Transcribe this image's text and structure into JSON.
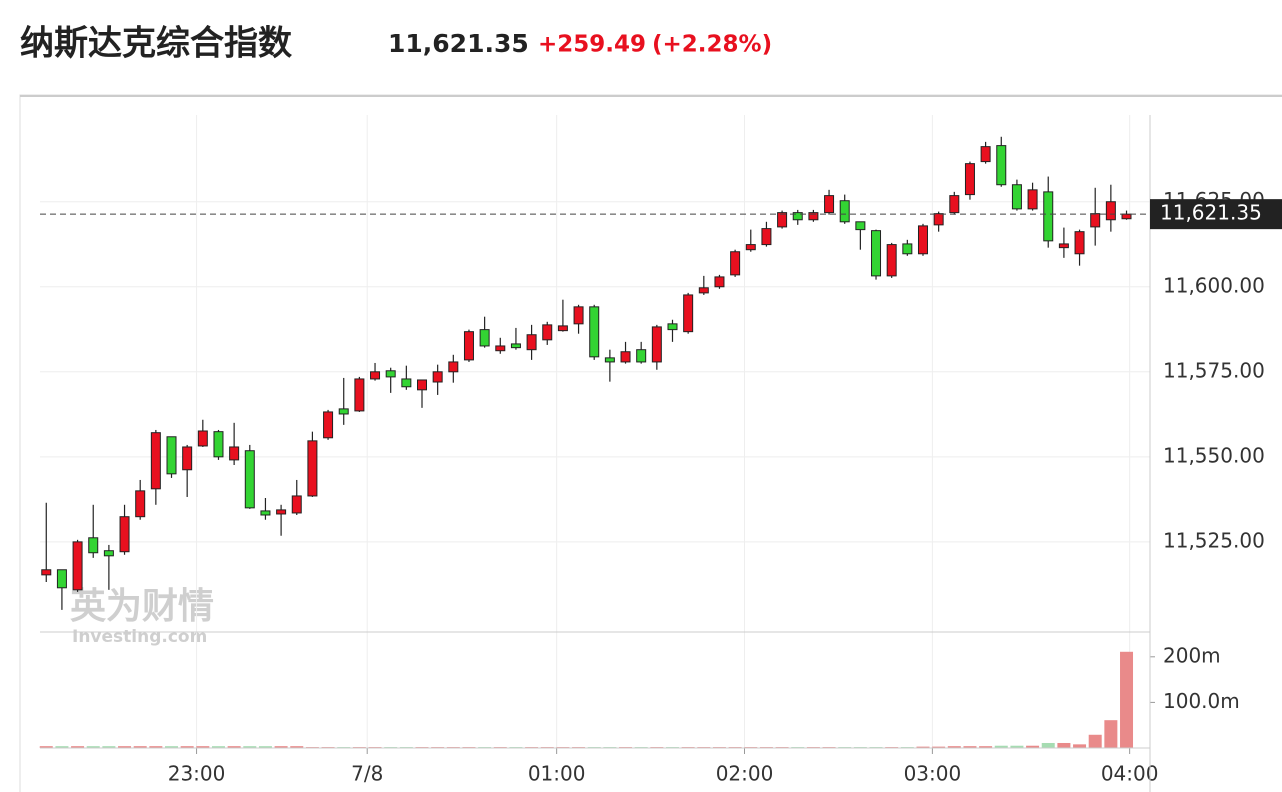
{
  "header": {
    "title": "纳斯达克综合指数",
    "change": "+259.49",
    "change_pct": "(+2.28%)"
  },
  "watermark": [
    "英为财情",
    "Investing.com"
  ],
  "chart_data": {
    "type": "candlestick",
    "up_color": "#e8101f",
    "down_color": "#33d433",
    "volume_up_color": "#e98a8a",
    "volume_down_color": "#a6dcb2",
    "grid": true,
    "ylim": [
      11498.5,
      11650.5
    ],
    "yticks": [
      {
        "value": 11525,
        "label": "11,525.00"
      },
      {
        "value": 11550,
        "label": "11,550.00"
      },
      {
        "value": 11575,
        "label": "11,575.00"
      },
      {
        "value": 11600,
        "label": "11,600.00"
      },
      {
        "value": 11625,
        "label": "11,625.00"
      }
    ],
    "xlim": [
      -0.4,
      70.5
    ],
    "xticks": [
      {
        "value": 9.6,
        "label": "23:00"
      },
      {
        "value": 20.5,
        "label": "7/8"
      },
      {
        "value": 32.6,
        "label": "01:00"
      },
      {
        "value": 44.6,
        "label": "02:00"
      },
      {
        "value": 56.6,
        "label": "03:00"
      },
      {
        "value": 69.2,
        "label": "04:00"
      }
    ],
    "last_price": {
      "value": 11621.35,
      "label": "11,621.35"
    },
    "volume_ylim": [
      0,
      250
    ],
    "volume_yticks": [
      {
        "value": 100,
        "label": "100.0m"
      },
      {
        "value": 200,
        "label": "200m"
      }
    ],
    "ohlc": [
      [
        11515.3,
        11536.5,
        11513.2,
        11516.8
      ],
      [
        11516.8,
        11516.8,
        11505,
        11511.5
      ],
      [
        11510.9,
        11525.6,
        11510.3,
        11525
      ],
      [
        11526.2,
        11535.9,
        11520.3,
        11521.8
      ],
      [
        11522.4,
        11524.1,
        11510.9,
        11520.9
      ],
      [
        11522.1,
        11535.9,
        11521.2,
        11532.4
      ],
      [
        11532.4,
        11543.2,
        11531.5,
        11540
      ],
      [
        11540.6,
        11557.9,
        11535.9,
        11557.1
      ],
      [
        11555.9,
        11555.9,
        11543.8,
        11545
      ],
      [
        11546.2,
        11553.5,
        11538.2,
        11552.9
      ],
      [
        11553.2,
        11560.9,
        11552.9,
        11557.6
      ],
      [
        11557.4,
        11557.9,
        11549.1,
        11550
      ],
      [
        11549.1,
        11560,
        11547.6,
        11552.9
      ],
      [
        11551.8,
        11553.5,
        11534.7,
        11535
      ],
      [
        11534.1,
        11537.9,
        11531.5,
        11532.9
      ],
      [
        11533.2,
        11535.9,
        11526.8,
        11534.4
      ],
      [
        11533.5,
        11543.2,
        11532.9,
        11538.5
      ],
      [
        11538.5,
        11557.4,
        11538.2,
        11554.7
      ],
      [
        11555.6,
        11563.8,
        11555,
        11563.2
      ],
      [
        11564.1,
        11573.2,
        11559.4,
        11562.6
      ],
      [
        11563.5,
        11573.5,
        11563.2,
        11572.9
      ],
      [
        11572.9,
        11577.6,
        11572.4,
        11575
      ],
      [
        11575.3,
        11576.2,
        11568.8,
        11573.5
      ],
      [
        11572.9,
        11576.8,
        11569.7,
        11570.6
      ],
      [
        11569.7,
        11572.6,
        11564.4,
        11572.6
      ],
      [
        11572,
        11577.1,
        11568.2,
        11575
      ],
      [
        11575,
        11580,
        11571.8,
        11577.9
      ],
      [
        11578.5,
        11587.4,
        11577.9,
        11586.8
      ],
      [
        11587.4,
        11591.2,
        11582.1,
        11582.6
      ],
      [
        11581.2,
        11585,
        11580.3,
        11582.6
      ],
      [
        11583.2,
        11587.9,
        11581.5,
        11582.1
      ],
      [
        11581.5,
        11588.8,
        11578.5,
        11585.9
      ],
      [
        11584.4,
        11589.7,
        11582.9,
        11588.8
      ],
      [
        11587.1,
        11596.2,
        11586.8,
        11588.5
      ],
      [
        11589.1,
        11594.7,
        11586.2,
        11594.1
      ],
      [
        11594.1,
        11594.7,
        11578.5,
        11579.4
      ],
      [
        11579.1,
        11581.5,
        11572.1,
        11577.9
      ],
      [
        11577.9,
        11583.8,
        11577.4,
        11580.9
      ],
      [
        11581.5,
        11583.8,
        11577.4,
        11577.9
      ],
      [
        11577.9,
        11588.8,
        11575.6,
        11588.2
      ],
      [
        11589.1,
        11590.3,
        11583.8,
        11587.4
      ],
      [
        11586.8,
        11598.2,
        11586.2,
        11597.6
      ],
      [
        11598.2,
        11603.2,
        11597.6,
        11599.7
      ],
      [
        11600,
        11603.5,
        11599.4,
        11602.9
      ],
      [
        11603.5,
        11610.9,
        11602.9,
        11610.3
      ],
      [
        11610.9,
        11616.8,
        11610.3,
        11612.4
      ],
      [
        11612.4,
        11619.1,
        11611.8,
        11617.1
      ],
      [
        11617.6,
        11622.4,
        11617.1,
        11621.8
      ],
      [
        11621.8,
        11622.6,
        11618.2,
        11619.7
      ],
      [
        11619.7,
        11622.6,
        11619.1,
        11621.8
      ],
      [
        11621.8,
        11628.5,
        11621.2,
        11626.8
      ],
      [
        11625.3,
        11627.1,
        11618.5,
        11619.1
      ],
      [
        11619.1,
        11619.1,
        11610.9,
        11616.8
      ],
      [
        11616.5,
        11616.8,
        11602.1,
        11603.2
      ],
      [
        11603.2,
        11612.9,
        11602.6,
        11612.4
      ],
      [
        11612.6,
        11613.8,
        11609.1,
        11609.7
      ],
      [
        11609.7,
        11618.5,
        11609.1,
        11617.9
      ],
      [
        11618.2,
        11622.1,
        11616.2,
        11621.5
      ],
      [
        11621.8,
        11627.9,
        11621.2,
        11626.8
      ],
      [
        11627.1,
        11636.8,
        11625.6,
        11636.2
      ],
      [
        11636.8,
        11642.6,
        11636.2,
        11641.2
      ],
      [
        11641.5,
        11644.1,
        11629.4,
        11630
      ],
      [
        11630,
        11631.5,
        11622.4,
        11622.9
      ],
      [
        11622.9,
        11630.6,
        11622.4,
        11628.5
      ],
      [
        11627.9,
        11632.4,
        11611.5,
        11613.5
      ],
      [
        11611.5,
        11617.4,
        11608.5,
        11612.6
      ],
      [
        11609.7,
        11616.8,
        11606.2,
        11616.2
      ],
      [
        11617.6,
        11629.1,
        11612.1,
        11621.5
      ],
      [
        11619.7,
        11630,
        11616.2,
        11625
      ],
      [
        11620,
        11622.4,
        11619.7,
        11621.35
      ]
    ],
    "volume": [
      4,
      4,
      4,
      4,
      4,
      4,
      4,
      4,
      4,
      4,
      4,
      4,
      4,
      4,
      4,
      4,
      4,
      2,
      2,
      2,
      2,
      2,
      2,
      2,
      2,
      2,
      2,
      2,
      2,
      2,
      2,
      2,
      2,
      2,
      2,
      2,
      2,
      2,
      2,
      2,
      2,
      2,
      2,
      2,
      2,
      2,
      2,
      2,
      2,
      2,
      2,
      2,
      2,
      2,
      2,
      2,
      3,
      3,
      4,
      4,
      4,
      5,
      5,
      5,
      11,
      11,
      8,
      29,
      61,
      211
    ]
  }
}
